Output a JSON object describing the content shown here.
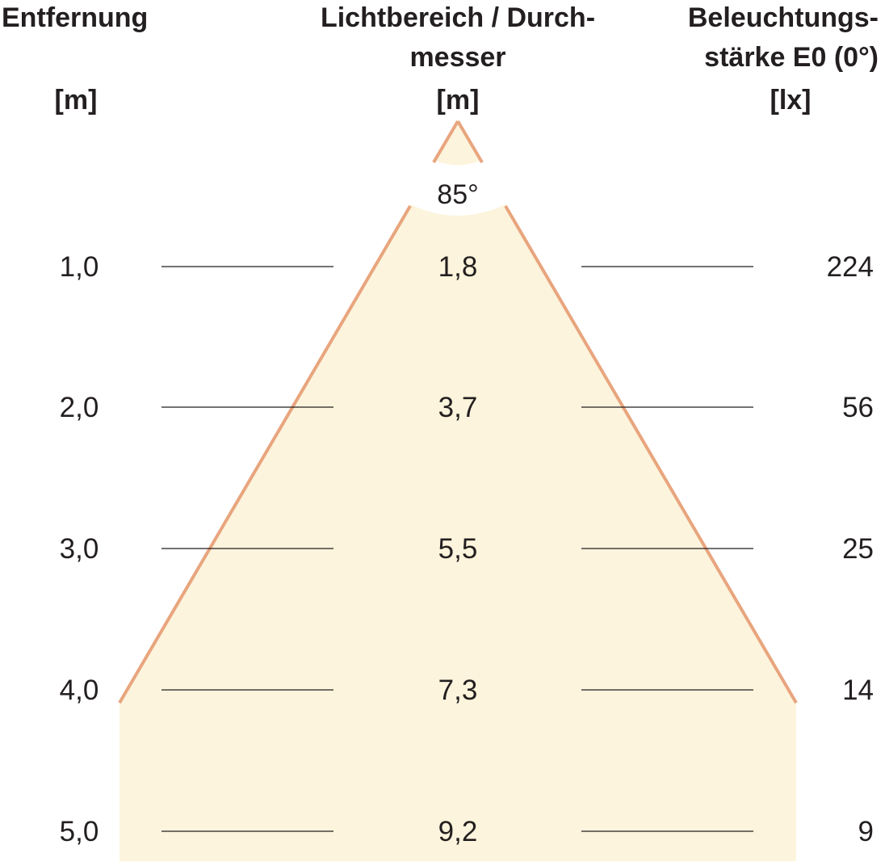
{
  "headers": {
    "distance": {
      "line1": "Entfernung",
      "unit": "[m]"
    },
    "diameter": {
      "line1": "Lichtbereich / Durch-",
      "line2": "messer",
      "unit": "[m]"
    },
    "illuminance": {
      "line1": "Beleuchtungs-",
      "line2": "stärke E0 (0°)",
      "unit": "[lx]"
    }
  },
  "beam_angle": "85°",
  "rows": [
    {
      "distance": "1,0",
      "diameter": "1,8",
      "illuminance": "224"
    },
    {
      "distance": "2,0",
      "diameter": "3,7",
      "illuminance": "56"
    },
    {
      "distance": "3,0",
      "diameter": "5,5",
      "illuminance": "25"
    },
    {
      "distance": "4,0",
      "diameter": "7,3",
      "illuminance": "14"
    },
    {
      "distance": "5,0",
      "diameter": "9,2",
      "illuminance": "9"
    }
  ],
  "colors": {
    "beam_fill": "#fcf4dc",
    "beam_edge": "#e8a57e",
    "text": "#231f20",
    "rule": "#231f20"
  }
}
